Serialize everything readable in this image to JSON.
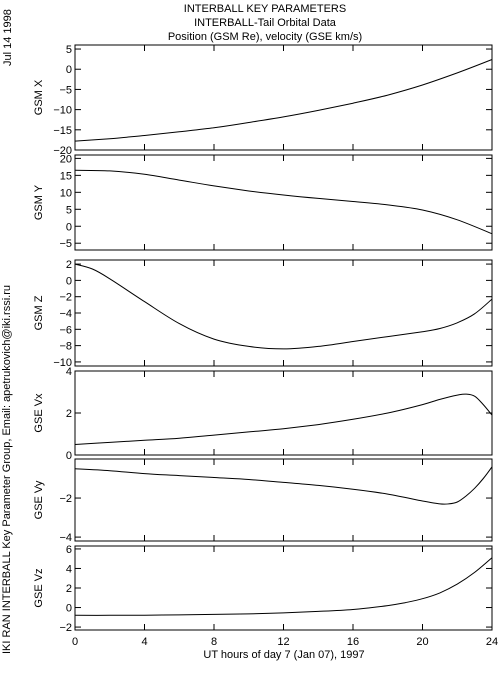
{
  "header": {
    "line1": "INTERBALL KEY PARAMETERS",
    "line2": "INTERBALL-Tail Orbital Data",
    "line3": "Position (GSM Re), velocity (GSE km/s)"
  },
  "side_text": {
    "date": "Jul 14 1998",
    "credit": "IKI RAN INTERBALL Key Parameter Group, Email: apetrukovich@iki.rssi.ru"
  },
  "chart_data": [
    {
      "type": "line",
      "ylabel": "GSM X",
      "ylim": [
        -20,
        6
      ],
      "yticks": [
        5,
        0,
        -5,
        -10,
        -15,
        -20
      ],
      "xlim": [
        0,
        24
      ],
      "x": [
        0,
        2,
        4,
        6,
        8,
        10,
        12,
        14,
        16,
        18,
        20,
        22,
        24
      ],
      "series": [
        {
          "values": [
            -17.8,
            -17.2,
            -16.4,
            -15.5,
            -14.5,
            -13.2,
            -11.8,
            -10.2,
            -8.4,
            -6.4,
            -3.9,
            -0.9,
            2.4
          ]
        }
      ]
    },
    {
      "type": "line",
      "ylabel": "GSM Y",
      "ylim": [
        -7,
        21
      ],
      "yticks": [
        20,
        15,
        10,
        5,
        0,
        -5
      ],
      "xlim": [
        0,
        24
      ],
      "x": [
        0,
        2,
        4,
        6,
        8,
        10,
        12,
        14,
        16,
        18,
        20,
        22,
        24
      ],
      "series": [
        {
          "values": [
            16.5,
            16.3,
            15.3,
            13.6,
            11.9,
            10.4,
            9.2,
            8.2,
            7.3,
            6.3,
            4.8,
            1.9,
            -2.2
          ]
        }
      ]
    },
    {
      "type": "line",
      "ylabel": "GSM Z",
      "ylim": [
        -10.5,
        2.5
      ],
      "yticks": [
        2,
        0,
        -2,
        -4,
        -6,
        -8,
        -10
      ],
      "xlim": [
        0,
        24
      ],
      "x": [
        0,
        1,
        2,
        4,
        6,
        8,
        10,
        12,
        14,
        16,
        18,
        20,
        21,
        22,
        23,
        24
      ],
      "series": [
        {
          "values": [
            2.0,
            1.4,
            0.2,
            -2.6,
            -5.3,
            -7.2,
            -8.1,
            -8.4,
            -8.1,
            -7.5,
            -6.9,
            -6.3,
            -5.9,
            -5.2,
            -4.1,
            -2.3
          ]
        }
      ]
    },
    {
      "type": "line",
      "ylabel": "GSE Vx",
      "ylim": [
        0,
        4
      ],
      "yticks": [
        4,
        2,
        0
      ],
      "xlim": [
        0,
        24
      ],
      "x": [
        0,
        2,
        4,
        6,
        8,
        10,
        12,
        14,
        16,
        18,
        20,
        21,
        22,
        22.5,
        23,
        23.5,
        24
      ],
      "series": [
        {
          "values": [
            0.5,
            0.6,
            0.7,
            0.8,
            0.95,
            1.1,
            1.25,
            1.45,
            1.7,
            2.0,
            2.4,
            2.65,
            2.85,
            2.9,
            2.8,
            2.4,
            1.9
          ]
        }
      ]
    },
    {
      "type": "line",
      "ylabel": "GSE Vy",
      "ylim": [
        -4.2,
        0
      ],
      "yticks": [
        -2,
        -4
      ],
      "xlim": [
        0,
        24
      ],
      "x": [
        0,
        2,
        4,
        6,
        8,
        10,
        12,
        14,
        16,
        18,
        20,
        21,
        21.5,
        22,
        22.5,
        23,
        23.5,
        24
      ],
      "series": [
        {
          "values": [
            -0.5,
            -0.6,
            -0.75,
            -0.85,
            -0.95,
            -1.05,
            -1.2,
            -1.35,
            -1.55,
            -1.8,
            -2.15,
            -2.3,
            -2.3,
            -2.2,
            -1.9,
            -1.5,
            -1.0,
            -0.4
          ]
        }
      ]
    },
    {
      "type": "line",
      "ylabel": "GSE Vz",
      "ylim": [
        -2.3,
        6.3
      ],
      "yticks": [
        6,
        4,
        2,
        0,
        -2
      ],
      "xlim": [
        0,
        24
      ],
      "x": [
        0,
        2,
        4,
        6,
        8,
        10,
        12,
        14,
        16,
        18,
        19,
        20,
        21,
        22,
        23,
        24
      ],
      "series": [
        {
          "values": [
            -0.8,
            -0.8,
            -0.78,
            -0.75,
            -0.7,
            -0.65,
            -0.55,
            -0.4,
            -0.2,
            0.2,
            0.5,
            0.9,
            1.5,
            2.4,
            3.6,
            5.1
          ]
        }
      ]
    }
  ],
  "xaxis": {
    "label": "UT hours of day   7 (Jan 07), 1997",
    "ticks": [
      0,
      4,
      8,
      12,
      16,
      20,
      24
    ]
  }
}
